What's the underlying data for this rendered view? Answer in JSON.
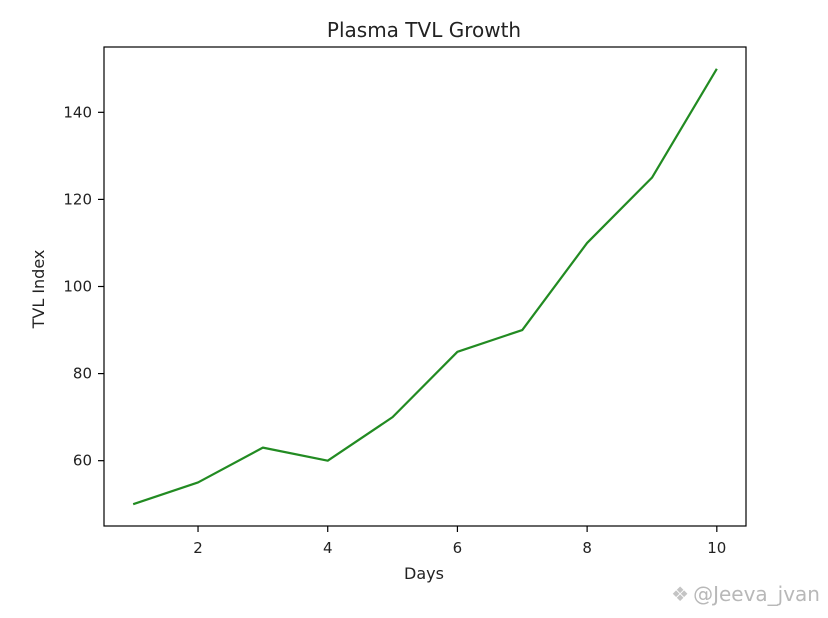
{
  "chart_data": {
    "type": "line",
    "title": "Plasma TVL Growth",
    "xlabel": "Days",
    "ylabel": "TVL Index",
    "x": [
      1,
      2,
      3,
      4,
      5,
      6,
      7,
      8,
      9,
      10
    ],
    "series": [
      {
        "values": [
          50,
          55,
          63,
          60,
          70,
          85,
          90,
          110,
          125,
          150
        ],
        "color": "#228b22"
      }
    ],
    "xlim": [
      0.55,
      10.45
    ],
    "ylim": [
      45,
      155
    ],
    "xticks": [
      2,
      4,
      6,
      8,
      10
    ],
    "yticks": [
      60,
      80,
      100,
      120,
      140
    ],
    "grid": false,
    "legend": "none"
  },
  "watermark": {
    "text": "@Jeeva_jvan",
    "icon": "diamond-logo-icon"
  }
}
